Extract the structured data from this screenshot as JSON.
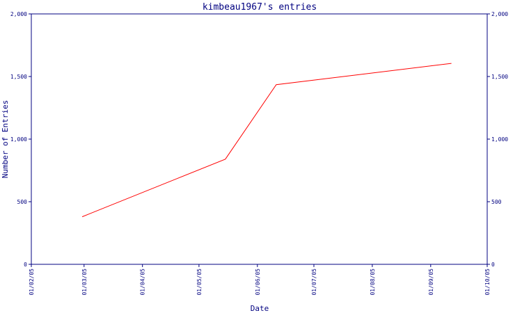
{
  "chart_data": {
    "type": "line",
    "title": "kimbeau1967's entries",
    "xlabel": "Date",
    "ylabel": "Number of Entries",
    "xlim": [
      "2005-02-01",
      "2005-10-01"
    ],
    "ylim": [
      0,
      2000
    ],
    "yticks": [
      0,
      500,
      1000,
      1500,
      2000
    ],
    "ytick_labels": [
      "0",
      "500",
      "1,000",
      "1,500",
      "2,000"
    ],
    "xticks": [
      "2005-02-01",
      "2005-03-01",
      "2005-04-01",
      "2005-05-01",
      "2005-06-01",
      "2005-07-01",
      "2005-08-01",
      "2005-09-01",
      "2005-10-01"
    ],
    "xtick_labels": [
      "01/02/05",
      "01/03/05",
      "01/04/05",
      "01/05/05",
      "01/06/05",
      "01/07/05",
      "01/08/05",
      "01/09/05",
      "01/10/05"
    ],
    "grid": false,
    "series": [
      {
        "color": "#ff0000",
        "x": [
          "2005-02-28",
          "2005-05-15",
          "2005-06-11",
          "2005-09-12"
        ],
        "y": [
          380,
          840,
          1435,
          1605
        ]
      }
    ]
  },
  "colors": {
    "axis": "#000080",
    "line": "#ff0000",
    "background": "#ffffff"
  }
}
